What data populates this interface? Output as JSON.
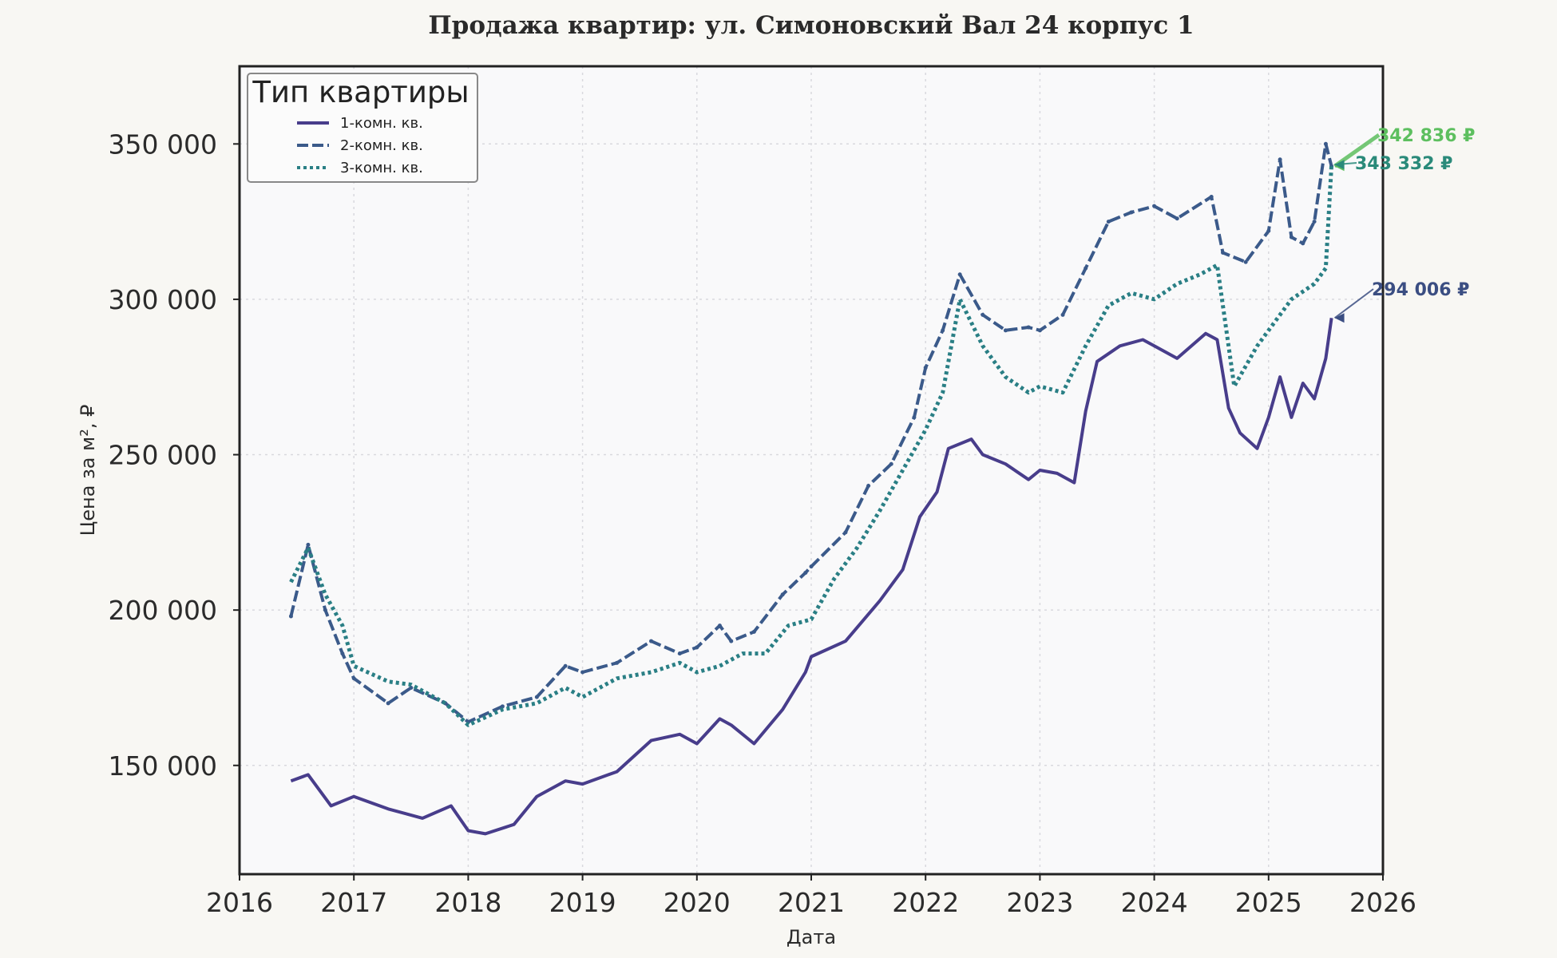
{
  "chart_data": {
    "type": "line",
    "title": "Продажа квартир: ул. Симоновский Вал 24 корпус 1",
    "xlabel": "Дата",
    "ylabel": "Цена за м², ₽",
    "xlim": [
      2016,
      2026
    ],
    "ylim": [
      115000,
      375000
    ],
    "x_ticks": [
      "2016",
      "2017",
      "2018",
      "2019",
      "2020",
      "2021",
      "2022",
      "2023",
      "2024",
      "2025",
      "2026"
    ],
    "y_ticks": [
      "150 000",
      "200 000",
      "250 000",
      "300 000",
      "350 000"
    ],
    "y_tick_values": [
      150000,
      200000,
      250000,
      300000,
      350000
    ],
    "grid": true,
    "legend": {
      "title": "Тип квартиры",
      "position": "top-left"
    },
    "series": [
      {
        "name": "1-комн. кв.",
        "color": "#483d8b",
        "style": "solid",
        "x": [
          2016.45,
          2016.6,
          2016.8,
          2017.0,
          2017.3,
          2017.6,
          2017.85,
          2018.0,
          2018.15,
          2018.4,
          2018.6,
          2018.85,
          2019.0,
          2019.3,
          2019.6,
          2019.85,
          2020.0,
          2020.2,
          2020.3,
          2020.5,
          2020.75,
          2020.95,
          2021.0,
          2021.3,
          2021.6,
          2021.8,
          2021.95,
          2022.1,
          2022.2,
          2022.4,
          2022.5,
          2022.7,
          2022.9,
          2023.0,
          2023.15,
          2023.3,
          2023.4,
          2023.5,
          2023.7,
          2023.9,
          2024.0,
          2024.2,
          2024.45,
          2024.55,
          2024.65,
          2024.75,
          2024.9,
          2025.0,
          2025.1,
          2025.2,
          2025.3,
          2025.4,
          2025.5,
          2025.55
        ],
        "y": [
          145000,
          147000,
          137000,
          140000,
          136000,
          133000,
          137000,
          129000,
          128000,
          131000,
          140000,
          145000,
          144000,
          148000,
          158000,
          160000,
          157000,
          165000,
          163000,
          157000,
          168000,
          180000,
          185000,
          190000,
          203000,
          213000,
          230000,
          238000,
          252000,
          255000,
          250000,
          247000,
          242000,
          245000,
          244000,
          241000,
          264000,
          280000,
          285000,
          287000,
          285000,
          281000,
          289000,
          287000,
          265000,
          257000,
          252000,
          262000,
          275000,
          262000,
          273000,
          268000,
          281000,
          294006
        ]
      },
      {
        "name": "2-комн. кв.",
        "color": "#3b5a8a",
        "style": "dashed",
        "x": [
          2016.45,
          2016.6,
          2016.75,
          2016.9,
          2017.0,
          2017.3,
          2017.5,
          2017.8,
          2018.0,
          2018.3,
          2018.6,
          2018.85,
          2019.0,
          2019.3,
          2019.6,
          2019.85,
          2020.0,
          2020.2,
          2020.3,
          2020.5,
          2020.75,
          2020.95,
          2021.0,
          2021.3,
          2021.5,
          2021.7,
          2021.9,
          2022.0,
          2022.15,
          2022.3,
          2022.5,
          2022.7,
          2022.9,
          2023.0,
          2023.2,
          2023.4,
          2023.6,
          2023.8,
          2024.0,
          2024.2,
          2024.5,
          2024.6,
          2024.8,
          2025.0,
          2025.1,
          2025.2,
          2025.3,
          2025.4,
          2025.5,
          2025.55
        ],
        "y": [
          198000,
          221000,
          200000,
          186000,
          178000,
          170000,
          175000,
          170000,
          164000,
          169000,
          172000,
          182000,
          180000,
          183000,
          190000,
          186000,
          188000,
          195000,
          190000,
          193000,
          205000,
          212000,
          214000,
          225000,
          240000,
          247000,
          262000,
          278000,
          290000,
          308000,
          295000,
          290000,
          291000,
          290000,
          295000,
          310000,
          325000,
          328000,
          330000,
          326000,
          333000,
          315000,
          312000,
          322000,
          345000,
          320000,
          318000,
          325000,
          350000,
          342836
        ]
      },
      {
        "name": "3-комн. кв.",
        "color": "#2a7f85",
        "style": "dotted",
        "x": [
          2016.45,
          2016.6,
          2016.75,
          2016.9,
          2017.0,
          2017.3,
          2017.5,
          2017.8,
          2018.0,
          2018.3,
          2018.6,
          2018.85,
          2019.0,
          2019.3,
          2019.6,
          2019.85,
          2020.0,
          2020.2,
          2020.4,
          2020.6,
          2020.8,
          2021.0,
          2021.2,
          2021.4,
          2021.6,
          2021.8,
          2022.0,
          2022.15,
          2022.3,
          2022.5,
          2022.7,
          2022.9,
          2023.0,
          2023.2,
          2023.4,
          2023.6,
          2023.8,
          2024.0,
          2024.2,
          2024.4,
          2024.55,
          2024.7,
          2024.9,
          2025.0,
          2025.2,
          2025.4,
          2025.5,
          2025.55
        ],
        "y": [
          209000,
          220000,
          205000,
          195000,
          182000,
          177000,
          176000,
          170000,
          163000,
          168000,
          170000,
          175000,
          172000,
          178000,
          180000,
          183000,
          180000,
          182000,
          186000,
          186000,
          195000,
          197000,
          210000,
          220000,
          232000,
          245000,
          258000,
          270000,
          300000,
          285000,
          275000,
          270000,
          272000,
          270000,
          285000,
          298000,
          302000,
          300000,
          305000,
          308000,
          311000,
          272000,
          285000,
          290000,
          300000,
          305000,
          310000,
          343332
        ]
      }
    ],
    "annotations": [
      {
        "text": "342 836 ₽",
        "color": "#5dbf5f",
        "x": 2025.55,
        "y": 342836
      },
      {
        "text": "343 332 ₽",
        "color": "#2a8a7a",
        "x": 2025.55,
        "y": 343332
      },
      {
        "text": "294 006 ₽",
        "color": "#3b4e82",
        "x": 2025.55,
        "y": 294006
      }
    ]
  }
}
